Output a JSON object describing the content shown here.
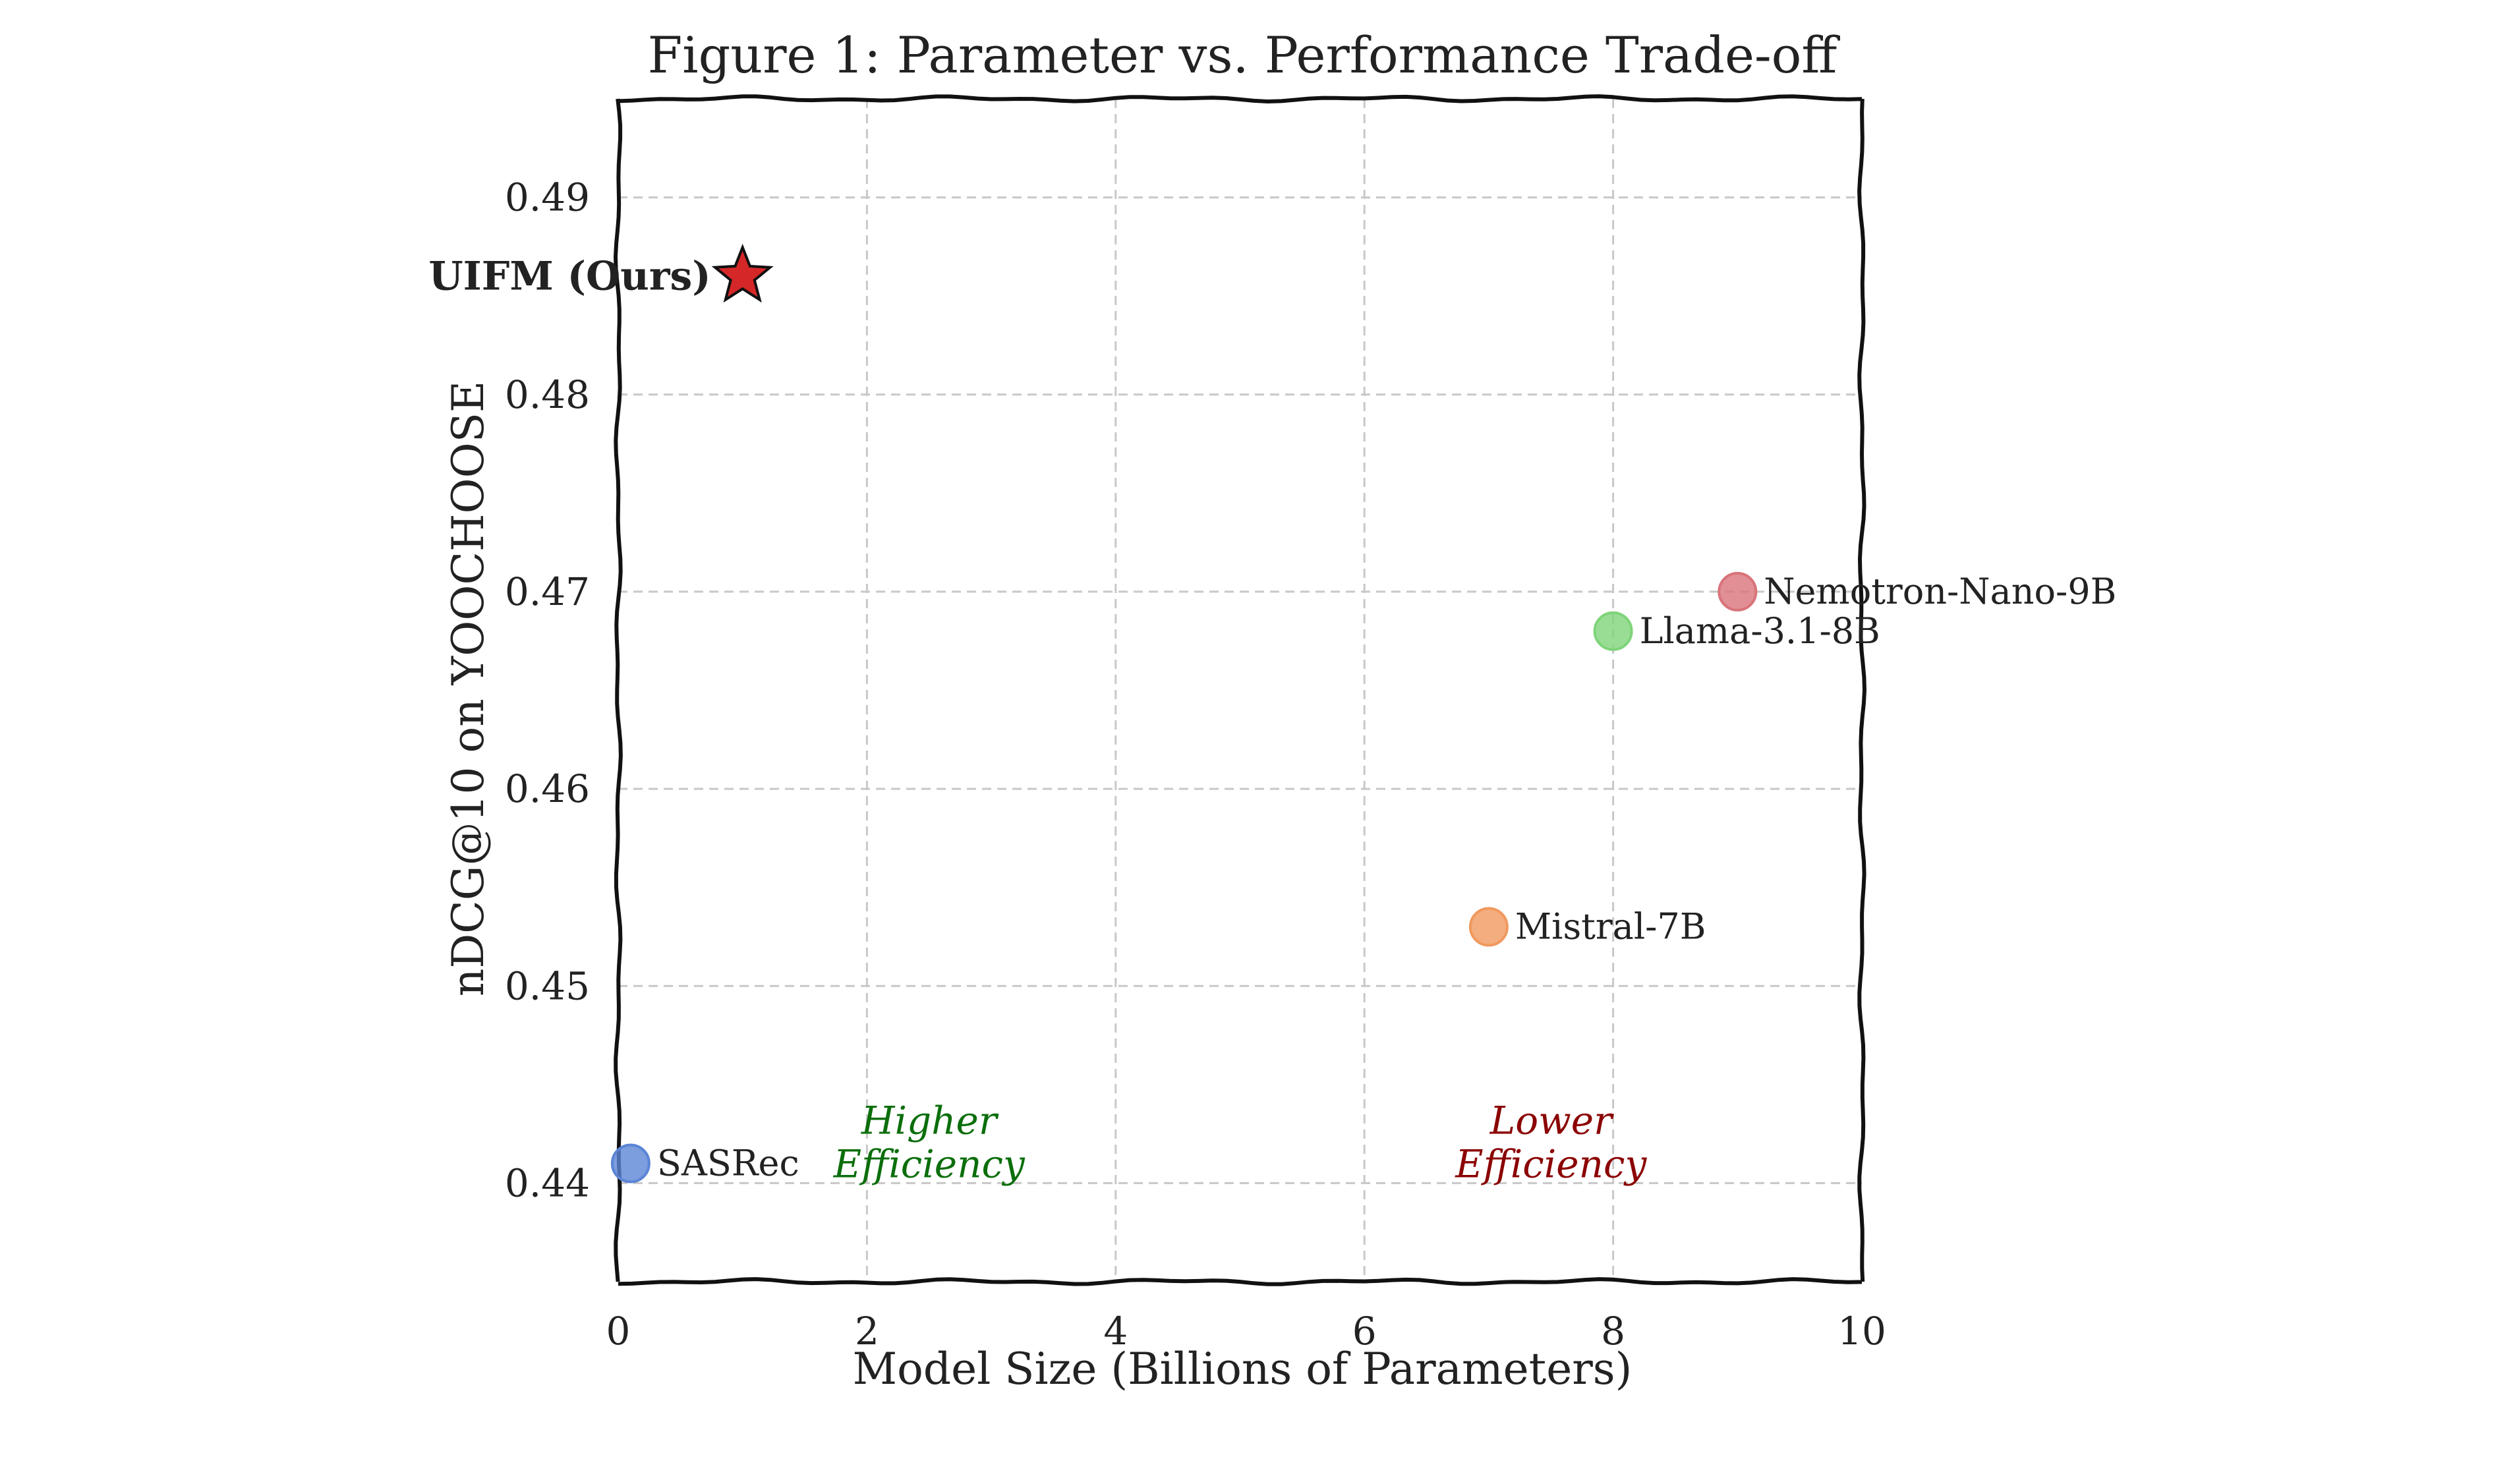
{
  "chart_data": {
    "type": "scatter",
    "title": "Figure 1: Parameter vs. Performance Trade-off",
    "xlabel": "Model Size (Billions of Parameters)",
    "ylabel": "nDCG@10 on YOOCHOOSE",
    "xlim": [
      0,
      10
    ],
    "ylim": [
      0.435,
      0.495
    ],
    "xticks": [
      0,
      2,
      4,
      6,
      8,
      10
    ],
    "yticks": [
      0.44,
      0.45,
      0.46,
      0.47,
      0.48,
      0.49
    ],
    "grid": true,
    "points": [
      {
        "label": "SASRec",
        "x": 0.1,
        "y": 0.441,
        "color": "#5b84d6",
        "marker": "circle"
      },
      {
        "label": "Mistral-7B",
        "x": 7.0,
        "y": 0.453,
        "color": "#f0995e",
        "marker": "circle"
      },
      {
        "label": "Llama-3.1-8B",
        "x": 8.0,
        "y": 0.468,
        "color": "#7fd47a",
        "marker": "circle"
      },
      {
        "label": "Nemotron-Nano-9B",
        "x": 9.0,
        "y": 0.47,
        "color": "#d9737a",
        "marker": "circle"
      },
      {
        "label": "UIFM (Ours)",
        "x": 1.0,
        "y": 0.486,
        "color": "#d62728",
        "marker": "star"
      }
    ],
    "annotations": [
      {
        "lines": [
          "Higher",
          "Efficiency"
        ],
        "x": 2.5,
        "y": 0.4415,
        "color": "#0b6e0b"
      },
      {
        "lines": [
          "Lower",
          "Efficiency"
        ],
        "x": 7.5,
        "y": 0.4415,
        "color": "#8b0000"
      }
    ]
  }
}
